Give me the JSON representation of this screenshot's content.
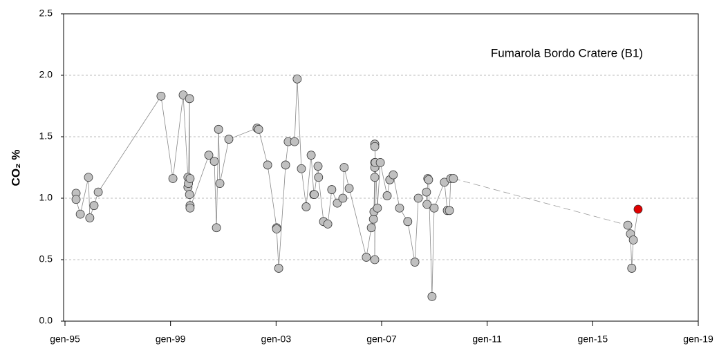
{
  "chart_data": {
    "type": "line-scatter",
    "annotation": "Fumarola Bordo Cratere (B1)",
    "y_label": "CO₂ %",
    "series": [
      {
        "color": "#c0c0c0",
        "last_color": "#e00000",
        "x": [
          1995.42,
          1995.42,
          1995.58,
          1995.89,
          1995.94,
          1996.1,
          1996.26,
          1998.64,
          1999.09,
          1999.48,
          1999.66,
          1999.66,
          1999.68,
          1999.72,
          1999.72,
          1999.74,
          1999.74,
          1999.74,
          2000.45,
          2000.66,
          2000.74,
          2000.82,
          2000.87,
          2001.21,
          2002.28,
          2002.34,
          2002.68,
          2003.02,
          2003.02,
          2003.1,
          2003.36,
          2003.46,
          2003.7,
          2003.8,
          2003.96,
          2004.14,
          2004.33,
          2004.43,
          2004.45,
          2004.59,
          2004.61,
          2004.8,
          2004.96,
          2005.11,
          2005.32,
          2005.53,
          2005.58,
          2005.77,
          2006.42,
          2006.61,
          2006.69,
          2006.71,
          2006.74,
          2006.74,
          2006.74,
          2006.74,
          2006.76,
          2006.74,
          2006.74,
          2006.84,
          2006.95,
          2007.21,
          2007.31,
          2007.44,
          2007.68,
          2007.99,
          2008.26,
          2008.39,
          2008.7,
          2008.72,
          2008.75,
          2008.78,
          2008.91,
          2008.99,
          2009.38,
          2009.49,
          2009.57,
          2009.62,
          2009.72,
          2016.33,
          2016.43,
          2016.48,
          2016.54,
          2016.72
        ],
        "values": [
          1.04,
          0.99,
          0.87,
          1.17,
          0.84,
          0.94,
          1.05,
          1.83,
          1.16,
          1.84,
          1.17,
          1.09,
          1.12,
          1.81,
          1.03,
          1.16,
          0.94,
          0.92,
          1.35,
          1.3,
          0.76,
          1.56,
          1.12,
          1.48,
          1.57,
          1.56,
          1.27,
          0.76,
          0.75,
          0.43,
          1.27,
          1.46,
          1.46,
          1.97,
          1.24,
          0.93,
          1.35,
          1.03,
          1.03,
          1.26,
          1.17,
          0.81,
          0.79,
          1.07,
          0.96,
          1.0,
          1.25,
          1.08,
          0.52,
          0.76,
          0.83,
          0.89,
          1.29,
          1.25,
          1.17,
          0.5,
          1.29,
          1.44,
          1.42,
          0.92,
          1.29,
          1.02,
          1.15,
          1.19,
          0.92,
          0.81,
          0.48,
          1.0,
          1.05,
          0.95,
          1.16,
          1.15,
          0.2,
          0.92,
          1.13,
          0.9,
          0.9,
          1.16,
          1.16,
          0.78,
          0.71,
          0.43,
          0.66,
          0.91
        ]
      }
    ],
    "xlim": [
      1995,
      2019
    ],
    "xticks": [
      {
        "value": 1995,
        "label": "gen-95"
      },
      {
        "value": 1999,
        "label": "gen-99"
      },
      {
        "value": 2003,
        "label": "gen-03"
      },
      {
        "value": 2007,
        "label": "gen-07"
      },
      {
        "value": 2011,
        "label": "gen-11"
      },
      {
        "value": 2015,
        "label": "gen-15"
      },
      {
        "value": 2019,
        "label": "gen-19"
      }
    ],
    "ylim": [
      0,
      2.5
    ],
    "yticks": [
      {
        "value": 0,
        "label": "0.0"
      },
      {
        "value": 0.5,
        "label": "0.5"
      },
      {
        "value": 1,
        "label": "1.0"
      },
      {
        "value": 1.5,
        "label": "1.5"
      },
      {
        "value": 2,
        "label": "2.0"
      },
      {
        "value": 2.5,
        "label": "2.5"
      }
    ],
    "grid": true
  }
}
